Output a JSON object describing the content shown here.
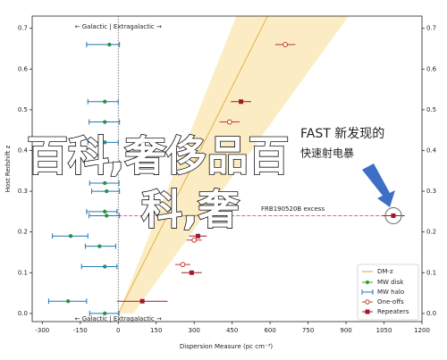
{
  "chart_data": {
    "type": "scatter",
    "xlabel": "Dispersion Measure (pc cm⁻³)",
    "ylabel": "Host Redshift z",
    "xlim": [
      -340,
      1200
    ],
    "ylim": [
      -0.02,
      0.73
    ],
    "xticks": [
      -300,
      -150,
      0,
      150,
      300,
      450,
      600,
      750,
      900,
      1050,
      1200
    ],
    "yticks": [
      {
        "value": 0,
        "label": "0.0"
      },
      0.1,
      0.2,
      0.3,
      0.4,
      0.5,
      0.6,
      0.7
    ],
    "dm_z": {
      "name": "DM-z",
      "color": "#f7d57a",
      "z": [
        0,
        0.73
      ],
      "lower": [
        0,
        467
      ],
      "mean": [
        0,
        590
      ],
      "upper": [
        60,
        910
      ]
    },
    "series": [
      {
        "name": "MW disk",
        "color": "#2ca02c",
        "marker": "dot",
        "x": [
          -35,
          -53,
          -53,
          -53,
          -64,
          -53,
          -46,
          -53,
          -46,
          -188,
          -74,
          -53,
          -198,
          -53
        ],
        "values": [
          0.66,
          0.52,
          0.47,
          0.42,
          0.37,
          0.32,
          0.3,
          0.25,
          0.24,
          0.19,
          0.165,
          0.115,
          0.03,
          0
        ]
      },
      {
        "name": "MW halo",
        "color": "#1f77b4",
        "marker": "errbar",
        "x": [
          -60,
          -60,
          -55,
          -60,
          -55,
          -55,
          -50,
          -65,
          -55,
          -190,
          -70,
          -75,
          -200,
          -55
        ],
        "values": [
          0.66,
          0.52,
          0.47,
          0.42,
          0.37,
          0.32,
          0.3,
          0.25,
          0.24,
          0.19,
          0.165,
          0.115,
          0.03,
          0
        ],
        "xerr": [
          65,
          60,
          60,
          60,
          60,
          58,
          55,
          60,
          60,
          70,
          60,
          70,
          75,
          58
        ]
      },
      {
        "name": "One-offs",
        "color": "#c0392b",
        "marker": "circle",
        "x": [
          660,
          440,
          255,
          300
        ],
        "values": [
          0.66,
          0.47,
          0.12,
          0.18
        ],
        "xerr": [
          40,
          40,
          30,
          30
        ]
      },
      {
        "name": "Repeaters",
        "color": "#a0182b",
        "marker": "square",
        "x": [
          485,
          1087,
          315,
          290,
          95
        ],
        "values": [
          0.52,
          0.24,
          0.19,
          0.1,
          0.03
        ],
        "xerr": [
          40,
          45,
          35,
          40,
          100
        ]
      }
    ],
    "legend": "lower right",
    "annotations": {
      "galactic_top": "← Galactic | Extragalactic →",
      "galactic_bottom": "← Galactic | Extragalactic →",
      "excess": "FRB190520B excess",
      "fast_1": "FAST 新发现的",
      "fast_2": "快速射电暴",
      "overlay_1": "百科,奢侈品百",
      "overlay_2": "科,奢"
    }
  }
}
